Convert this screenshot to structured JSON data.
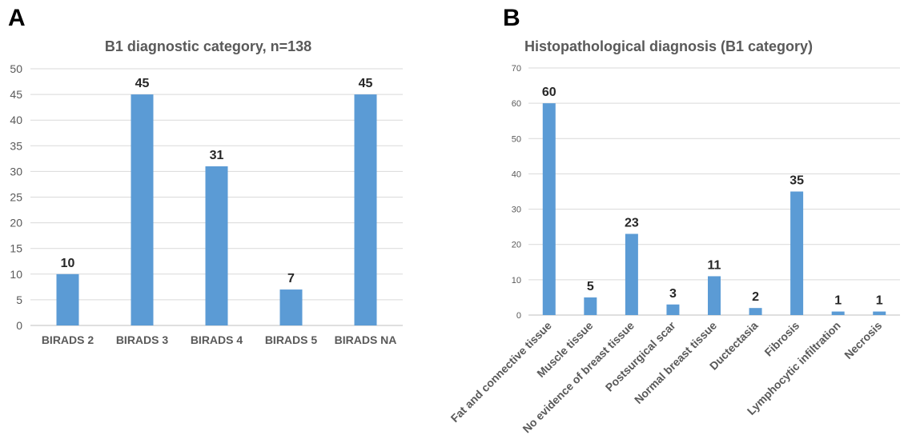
{
  "panels": {
    "a_letter": "A",
    "b_letter": "B"
  },
  "chart_data": [
    {
      "type": "bar",
      "title": "B1 diagnostic category, n=138",
      "categories": [
        "BIRADS 2",
        "BIRADS 3",
        "BIRADS 4",
        "BIRADS 5",
        "BIRADS NA"
      ],
      "values": [
        10,
        45,
        31,
        7,
        45
      ],
      "data_labels": [
        "10",
        "45",
        "31",
        "7",
        "45"
      ],
      "xlabel": "",
      "ylabel": "",
      "ylim": [
        0,
        50
      ],
      "yticks": [
        "0",
        "5",
        "10",
        "15",
        "20",
        "25",
        "30",
        "35",
        "40",
        "45",
        "50"
      ],
      "grid": true,
      "bar_color": "#5B9BD5"
    },
    {
      "type": "bar",
      "title": "Histopathological diagnosis (B1 category)",
      "categories": [
        "Fat and connective tissue",
        "Muscle tissue",
        "No evidence of breast tissue",
        "Postsurgical scar",
        "Normal breast tissue",
        "Ductectasia",
        "Fibrosis",
        "Lymphocytic infiltration",
        "Necrosis"
      ],
      "values": [
        60,
        5,
        23,
        3,
        11,
        2,
        35,
        1,
        1
      ],
      "data_labels": [
        "60",
        "5",
        "23",
        "3",
        "11",
        "2",
        "35",
        "1",
        "1"
      ],
      "xlabel": "",
      "ylabel": "",
      "ylim": [
        0,
        70
      ],
      "yticks": [
        "0",
        "10",
        "20",
        "30",
        "40",
        "50",
        "60",
        "70"
      ],
      "grid": true,
      "bar_color": "#5B9BD5"
    }
  ]
}
